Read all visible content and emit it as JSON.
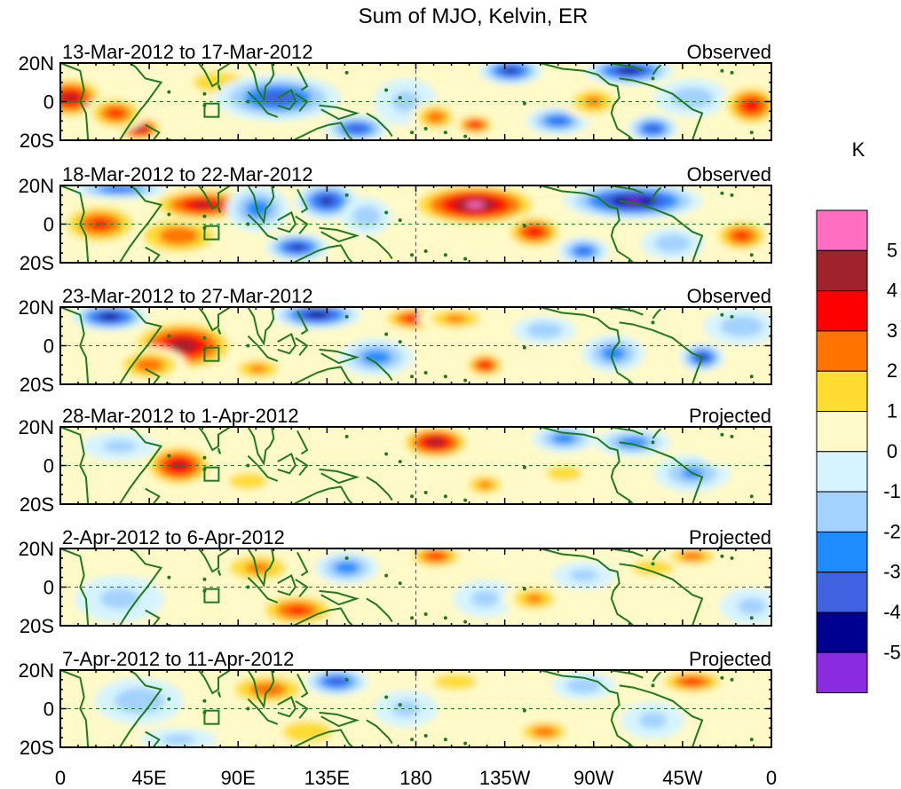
{
  "chart_data": {
    "type": "heatmap",
    "title": "Sum of MJO, Kelvin, ER",
    "units": "K",
    "x_ticks": [
      "0",
      "45E",
      "90E",
      "135E",
      "180",
      "135W",
      "90W",
      "45W",
      "0"
    ],
    "x_range": [
      0,
      360
    ],
    "y_ticks": [
      "20N",
      "0",
      "20S"
    ],
    "y_range": [
      -20,
      20
    ],
    "colorbar": {
      "labels": [
        "5",
        "4",
        "3",
        "2",
        "1",
        "0",
        "-1",
        "-2",
        "-3",
        "-4",
        "-5"
      ],
      "colors": [
        "#ff6ec0",
        "#a0222a",
        "#ff0000",
        "#ff7400",
        "#ffdc30",
        "#fffac8",
        "#d6f4ff",
        "#a3d2ff",
        "#1e8cff",
        "#4062e0",
        "#000090",
        "#8a2be2"
      ]
    },
    "panels": [
      {
        "date_range": "13-Mar-2012 to 17-Mar-2012",
        "status": "Observed",
        "blobs": [
          [
            5,
            2,
            12,
            10,
            4.5
          ],
          [
            40,
            -14,
            8,
            6,
            5
          ],
          [
            28,
            -6,
            10,
            8,
            3.5
          ],
          [
            80,
            10,
            14,
            8,
            2
          ],
          [
            110,
            2,
            20,
            10,
            -4
          ],
          [
            150,
            -14,
            10,
            6,
            -4
          ],
          [
            175,
            0,
            10,
            10,
            -1.5
          ],
          [
            190,
            -8,
            8,
            7,
            3
          ],
          [
            210,
            -12,
            7,
            5,
            4
          ],
          [
            228,
            16,
            10,
            6,
            -4.5
          ],
          [
            252,
            -10,
            10,
            6,
            -3.5
          ],
          [
            270,
            0,
            10,
            8,
            2.5
          ],
          [
            288,
            16,
            14,
            6,
            -5
          ],
          [
            300,
            -14,
            8,
            6,
            -4
          ],
          [
            320,
            2,
            12,
            8,
            -2
          ],
          [
            350,
            -2,
            10,
            10,
            4
          ]
        ]
      },
      {
        "date_range": "18-Mar-2012 to 22-Mar-2012",
        "status": "Observed",
        "blobs": [
          [
            20,
            0,
            14,
            10,
            3.5
          ],
          [
            60,
            -6,
            16,
            10,
            3
          ],
          [
            72,
            10,
            18,
            8,
            4.5
          ],
          [
            100,
            8,
            10,
            10,
            -3
          ],
          [
            120,
            -12,
            10,
            6,
            -4.5
          ],
          [
            135,
            12,
            10,
            8,
            -4.5
          ],
          [
            155,
            4,
            8,
            8,
            -2
          ],
          [
            210,
            10,
            22,
            10,
            5.5
          ],
          [
            240,
            -4,
            10,
            8,
            4
          ],
          [
            265,
            -14,
            8,
            6,
            -3.5
          ],
          [
            290,
            12,
            22,
            8,
            -5.5
          ],
          [
            310,
            -10,
            10,
            7,
            -2
          ],
          [
            345,
            -6,
            10,
            8,
            3.5
          ],
          [
            30,
            18,
            15,
            4,
            -3.5
          ]
        ]
      },
      {
        "date_range": "23-Mar-2012 to 27-Mar-2012",
        "status": "Observed",
        "blobs": [
          [
            25,
            15,
            12,
            6,
            -5
          ],
          [
            62,
            0,
            18,
            12,
            5
          ],
          [
            45,
            -10,
            12,
            8,
            3
          ],
          [
            100,
            -12,
            10,
            6,
            2.5
          ],
          [
            130,
            16,
            14,
            6,
            -5
          ],
          [
            160,
            -6,
            12,
            8,
            -3
          ],
          [
            180,
            14,
            12,
            6,
            4
          ],
          [
            200,
            14,
            12,
            6,
            2.5
          ],
          [
            215,
            -10,
            7,
            6,
            4
          ],
          [
            245,
            8,
            10,
            6,
            -2
          ],
          [
            280,
            -4,
            10,
            8,
            -3
          ],
          [
            325,
            -6,
            7,
            6,
            -4.5
          ],
          [
            345,
            10,
            12,
            8,
            -2
          ]
        ]
      },
      {
        "date_range": "28-Mar-2012 to 1-Apr-2012",
        "status": "Projected",
        "blobs": [
          [
            60,
            0,
            12,
            10,
            4.5
          ],
          [
            95,
            -8,
            14,
            8,
            1.5
          ],
          [
            130,
            -8,
            10,
            8,
            1
          ],
          [
            190,
            12,
            12,
            8,
            5
          ],
          [
            215,
            -10,
            8,
            6,
            2.5
          ],
          [
            255,
            14,
            10,
            6,
            -3
          ],
          [
            255,
            -4,
            10,
            6,
            2
          ],
          [
            290,
            12,
            12,
            6,
            -3
          ],
          [
            320,
            -4,
            12,
            8,
            -2.5
          ],
          [
            340,
            6,
            10,
            6,
            1
          ],
          [
            30,
            10,
            12,
            6,
            -1.5
          ]
        ]
      },
      {
        "date_range": "2-Apr-2012 to 6-Apr-2012",
        "status": "Projected",
        "blobs": [
          [
            100,
            10,
            14,
            8,
            2.5
          ],
          [
            120,
            -12,
            14,
            8,
            3.5
          ],
          [
            145,
            10,
            10,
            7,
            -3
          ],
          [
            190,
            16,
            10,
            6,
            3.5
          ],
          [
            215,
            -6,
            10,
            8,
            -1.5
          ],
          [
            240,
            -6,
            10,
            7,
            2.5
          ],
          [
            265,
            6,
            10,
            6,
            -1.5
          ],
          [
            300,
            10,
            12,
            6,
            2
          ],
          [
            320,
            16,
            10,
            5,
            3
          ],
          [
            30,
            -6,
            14,
            10,
            -1.5
          ],
          [
            350,
            -10,
            10,
            8,
            -1.5
          ]
        ]
      },
      {
        "date_range": "7-Apr-2012 to 11-Apr-2012",
        "status": "Projected",
        "blobs": [
          [
            105,
            10,
            15,
            8,
            3
          ],
          [
            125,
            -12,
            14,
            8,
            2
          ],
          [
            140,
            14,
            10,
            6,
            -4
          ],
          [
            175,
            0,
            10,
            8,
            -1.5
          ],
          [
            200,
            14,
            12,
            6,
            2
          ],
          [
            245,
            -12,
            10,
            6,
            3
          ],
          [
            265,
            12,
            10,
            6,
            -2
          ],
          [
            300,
            -6,
            10,
            8,
            -1.5
          ],
          [
            320,
            14,
            12,
            6,
            3.5
          ],
          [
            40,
            4,
            14,
            10,
            -2
          ],
          [
            60,
            -16,
            12,
            5,
            -1.5
          ]
        ]
      }
    ]
  }
}
